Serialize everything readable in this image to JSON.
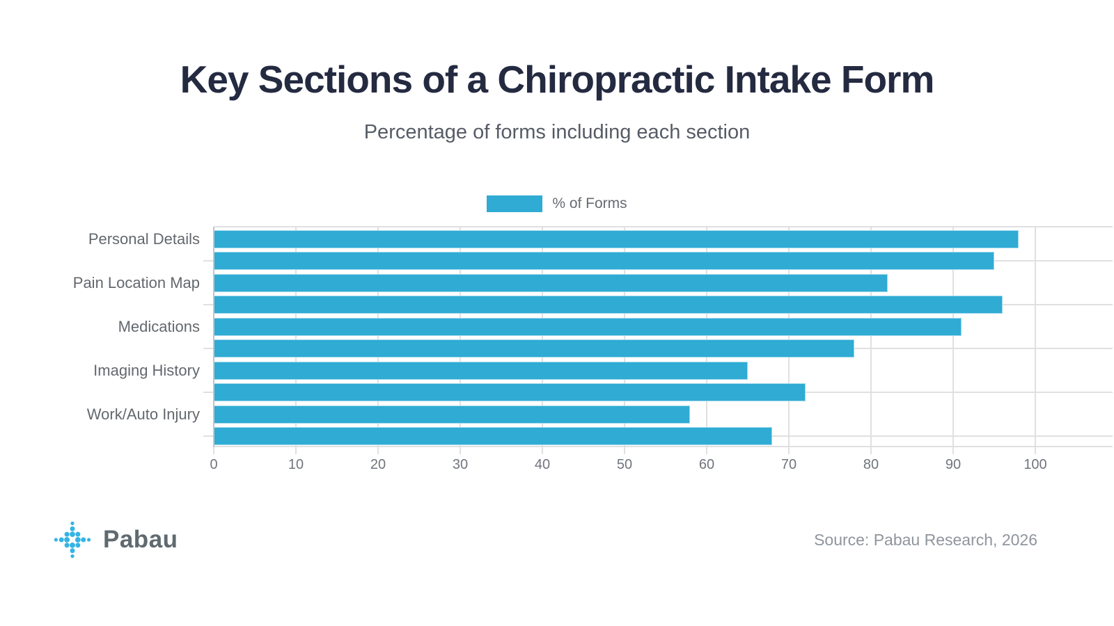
{
  "title": "Key Sections of a Chiropractic Intake Form",
  "subtitle": "Percentage of forms including each section",
  "legend": {
    "label": "% of Forms"
  },
  "footer": {
    "brand": "Pabau",
    "source": "Source: Pabau Research, 2026"
  },
  "colors": {
    "bar": "#2fabd4",
    "title": "#242a40",
    "subtitle": "#565c66",
    "grid": "#e0e0e0",
    "spine": "#c2c4c8",
    "logo_dot": "#35b4e5"
  },
  "chart_data": {
    "type": "bar",
    "orientation": "horizontal",
    "title": "Key Sections of a Chiropractic Intake Form",
    "subtitle": "Percentage of forms including each section",
    "series_label": "% of Forms",
    "categories": [
      "Personal Details",
      "",
      "Pain Location Map",
      "",
      "Medications",
      "",
      "Imaging History",
      "",
      "Work/Auto Injury",
      ""
    ],
    "values": [
      98,
      95,
      82,
      96,
      91,
      78,
      65,
      72,
      58,
      68
    ],
    "xlabel": "",
    "ylabel": "",
    "xlim": [
      0,
      100
    ],
    "x_ticks": [
      0,
      10,
      20,
      30,
      40,
      50,
      60,
      70,
      80,
      90,
      100
    ],
    "grid": true,
    "legend_position": "top-center"
  }
}
